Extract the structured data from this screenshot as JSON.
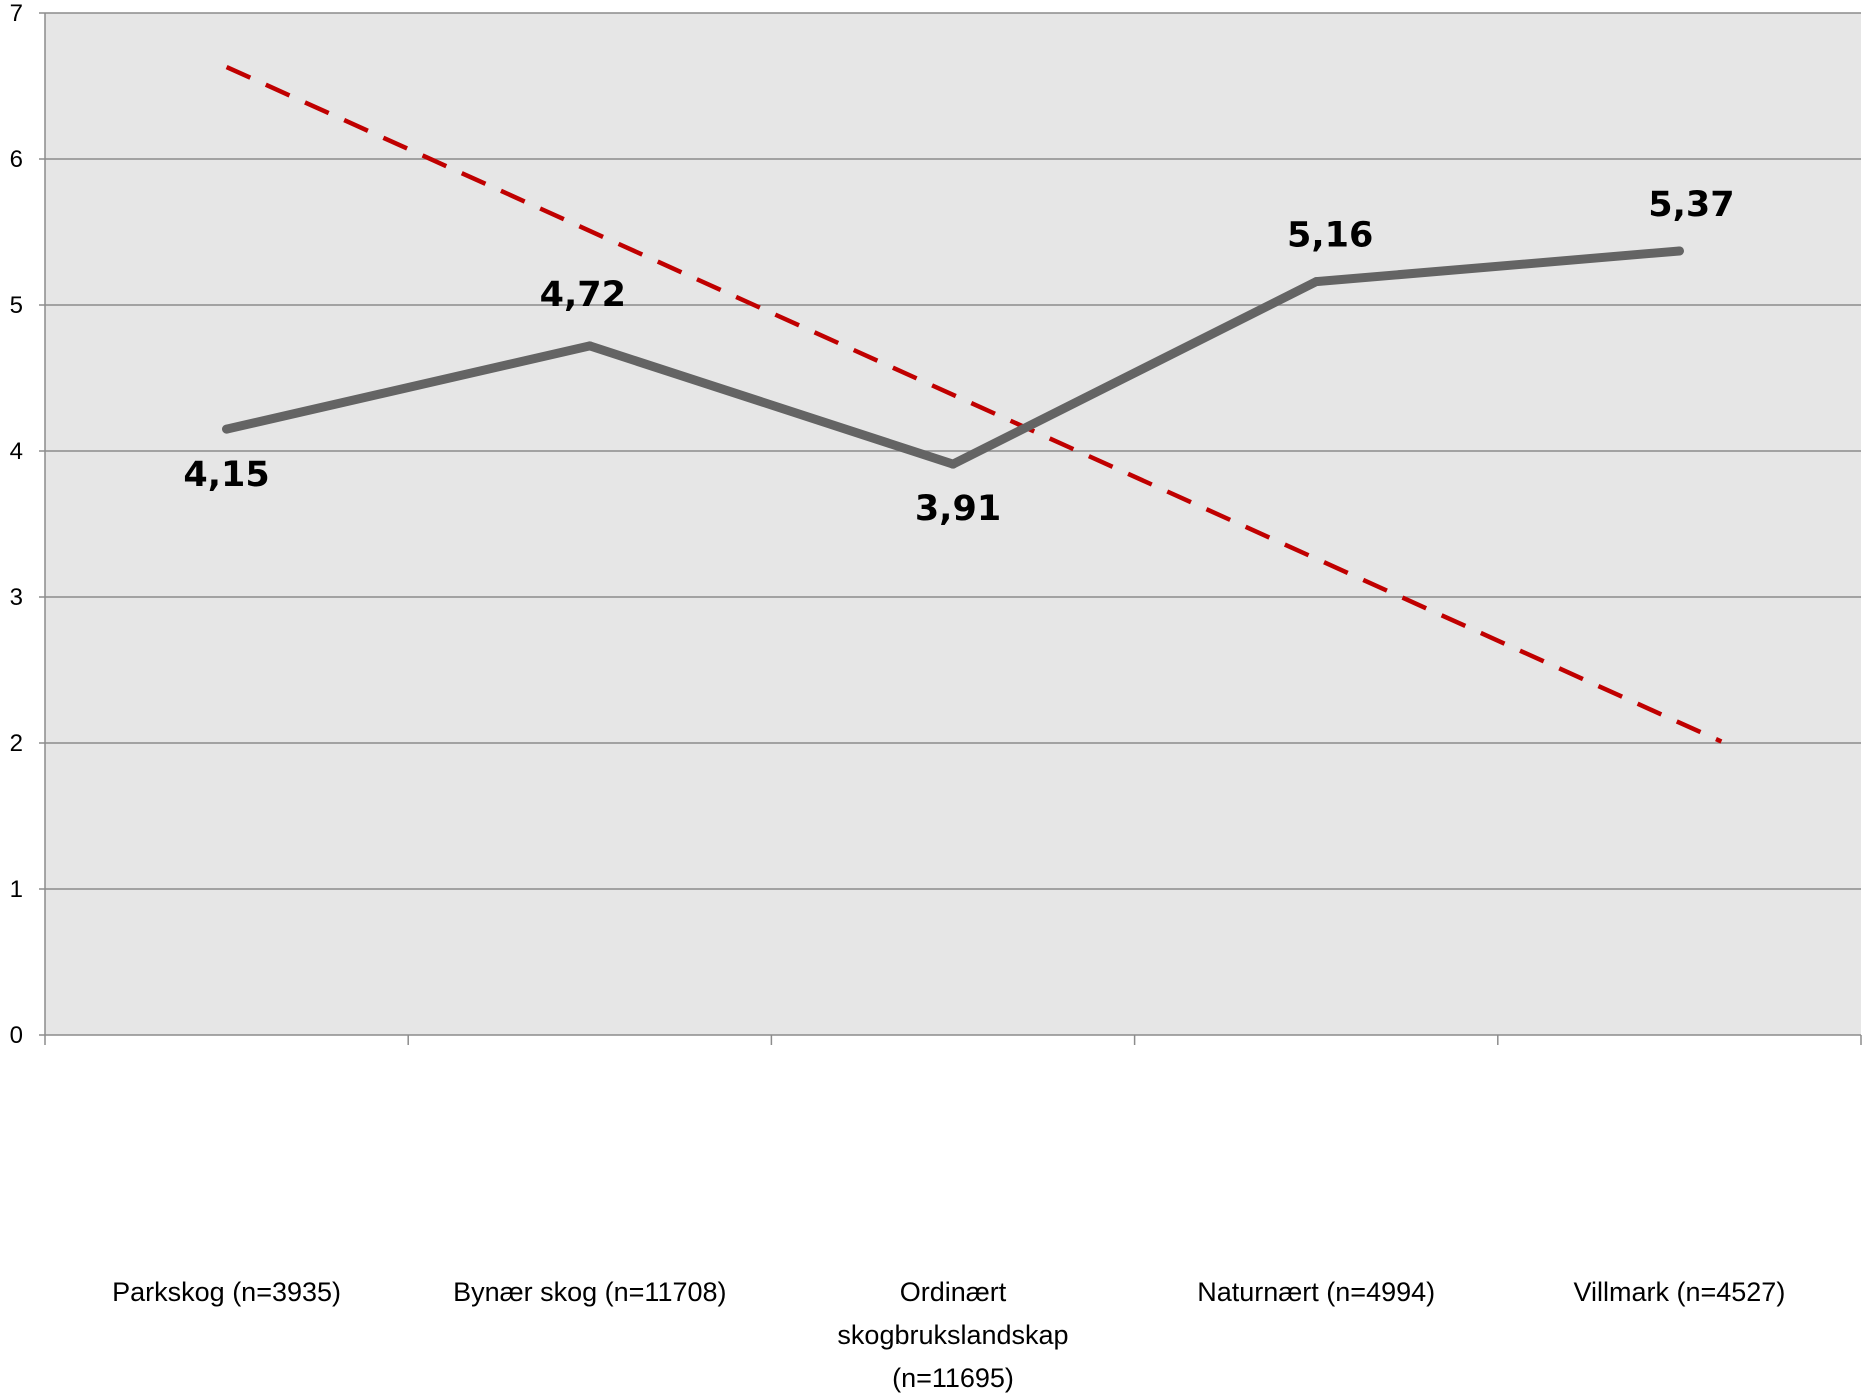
{
  "chart_data": {
    "type": "line",
    "categories": [
      [
        "Parkskog (n=3935)"
      ],
      [
        "Bynær skog (n=11708)"
      ],
      [
        "Ordinært",
        "skogbrukslandskap",
        "(n=11695)"
      ],
      [
        "Naturnært (n=4994)"
      ],
      [
        "Villmark (n=4527)"
      ]
    ],
    "series": [
      {
        "values": [
          4.15,
          4.72,
          3.91,
          5.16,
          5.37
        ],
        "labels": [
          "4,15",
          "4,72",
          "3,91",
          "5,16",
          "5,37"
        ],
        "color": "#646464",
        "style": "solid"
      }
    ],
    "trendline": {
      "start": 6.63,
      "end": 2.01,
      "color": "#c00000",
      "style": "dashed"
    },
    "ylim": [
      0,
      7
    ],
    "yticks": [
      "0",
      "1",
      "2",
      "3",
      "4",
      "5",
      "6",
      "7"
    ],
    "grid": true,
    "plot_background": "#e6e6e6",
    "title": "",
    "xlabel": "",
    "ylabel": ""
  }
}
